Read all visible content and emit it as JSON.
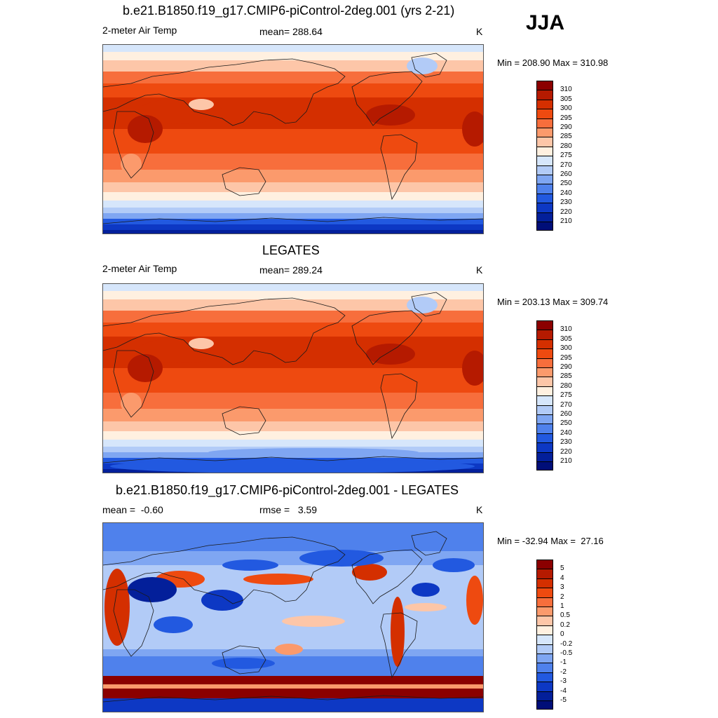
{
  "season": "JJA",
  "panels": [
    {
      "title": "b.e21.B1850.f19_g17.CMIP6-piControl-2deg.001 (yrs 2-21)",
      "left": "2-meter Air Temp",
      "center": "mean= 288.64",
      "units": "K",
      "range": "Min = 208.90 Max = 310.98",
      "type": "model"
    },
    {
      "title": "LEGATES",
      "left": "2-meter Air Temp",
      "center": "mean= 289.24",
      "units": "K",
      "range": "Min = 203.13 Max = 309.74",
      "type": "obs"
    },
    {
      "title": "b.e21.B1850.f19_g17.CMIP6-piControl-2deg.001 - LEGATES",
      "left": "mean =  -0.60",
      "center": "rmse =   3.59",
      "units": "K",
      "range": "Min = -32.94 Max =  27.16",
      "type": "diff"
    }
  ],
  "abs_colorbar": {
    "labels": [
      "310",
      "305",
      "300",
      "295",
      "290",
      "285",
      "280",
      "275",
      "270",
      "260",
      "250",
      "240",
      "230",
      "220",
      "210"
    ],
    "colors": [
      "#8b0000",
      "#b51a00",
      "#d42f00",
      "#ee4a10",
      "#f76e3c",
      "#fb9a6c",
      "#fdc6a8",
      "#fff0e0",
      "#d6e6fb",
      "#b2cbf7",
      "#7fa6f2",
      "#4f81ec",
      "#2259e0",
      "#0d38c4",
      "#031f9a",
      "#000e78"
    ]
  },
  "diff_colorbar": {
    "labels": [
      "5",
      "4",
      "3",
      "2",
      "1",
      "0.5",
      "0.2",
      "0",
      "-0.2",
      "-0.5",
      "-1",
      "-2",
      "-3",
      "-4",
      "-5"
    ],
    "colors": [
      "#8b0000",
      "#b51a00",
      "#d42f00",
      "#ee4a10",
      "#f76e3c",
      "#fb9a6c",
      "#fdc6a8",
      "#fff0e0",
      "#d6e6fb",
      "#b2cbf7",
      "#7fa6f2",
      "#4f81ec",
      "#2259e0",
      "#0d38c4",
      "#031f9a",
      "#000e78"
    ]
  }
}
